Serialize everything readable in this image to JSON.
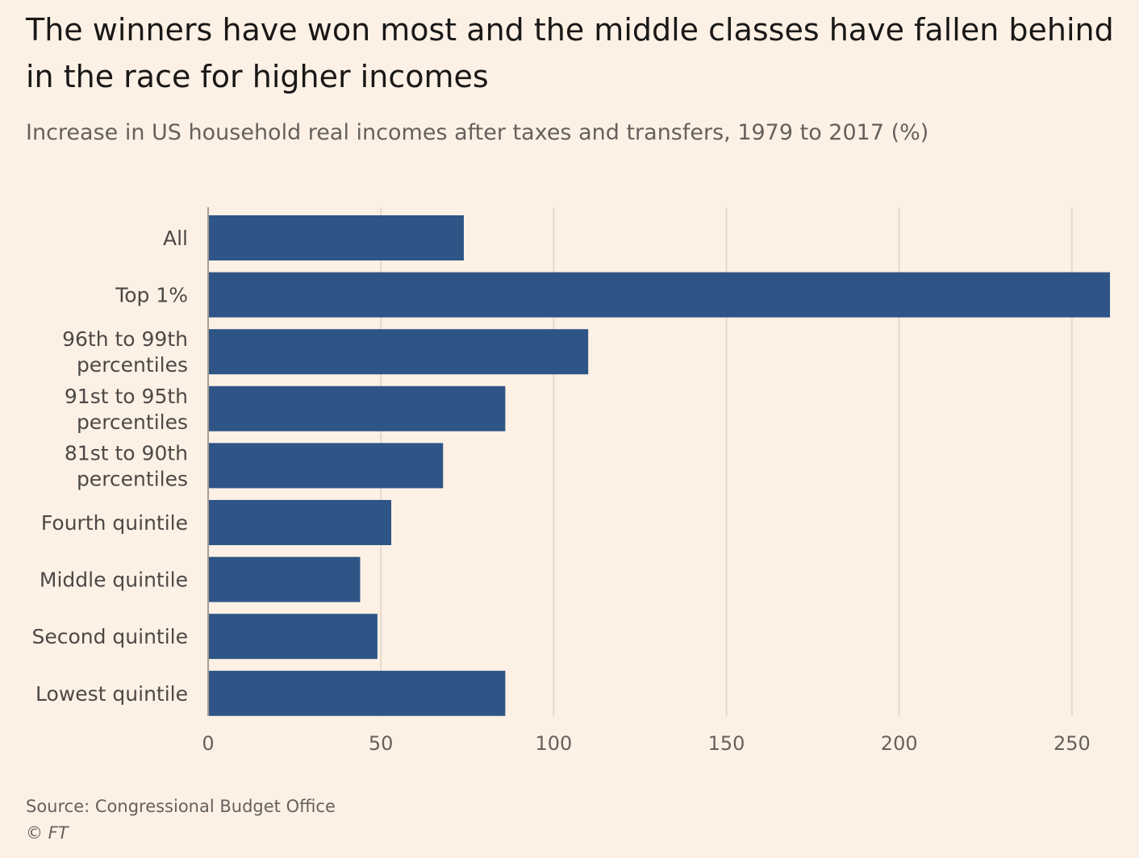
{
  "header": {
    "title": "The winners have won most and the middle classes have fallen behind in the race for higher incomes",
    "subtitle": "Increase in US household real incomes after taxes and transfers, 1979 to 2017 (%)"
  },
  "footer": {
    "source": "Source: Congressional Budget Office",
    "copyright": "© FT"
  },
  "colors": {
    "background": "#fdf1e6",
    "bar": "#2e5586",
    "grid": "#e6d9cc",
    "label": "#4d4845",
    "tick": "#66605c"
  },
  "chart_data": {
    "type": "bar",
    "orientation": "horizontal",
    "categories": [
      [
        "All"
      ],
      [
        "Top 1%"
      ],
      [
        "96th to 99th",
        "percentiles"
      ],
      [
        "91st to 95th",
        "percentiles"
      ],
      [
        "81st to 90th",
        "percentiles"
      ],
      [
        "Fourth quintile"
      ],
      [
        "Middle quintile"
      ],
      [
        "Second quintile"
      ],
      [
        "Lowest quintile"
      ]
    ],
    "values": [
      74,
      261,
      110,
      86,
      68,
      53,
      44,
      49,
      86
    ],
    "xlim": [
      0,
      261
    ],
    "xticks": [
      0,
      50,
      100,
      150,
      200,
      250
    ],
    "grid": true
  }
}
